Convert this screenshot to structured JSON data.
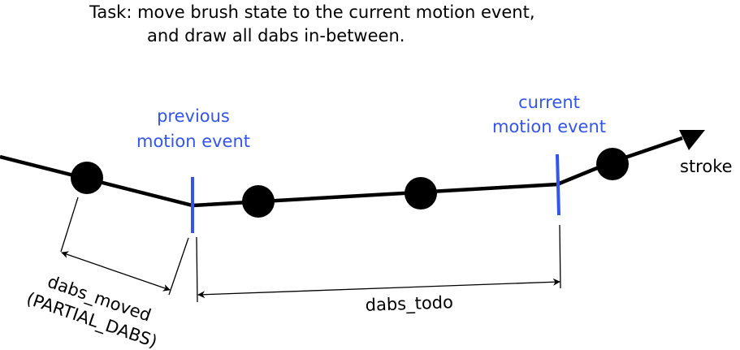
{
  "task": {
    "line1": "Task: move brush state to the current motion event,",
    "line2": "and draw all dabs in-between."
  },
  "previous_event": {
    "line1": "previous",
    "line2": "motion event"
  },
  "current_event": {
    "line1": "current",
    "line2": "motion event"
  },
  "stroke_label": "stroke",
  "dabs_moved": {
    "line1": "dabs_moved",
    "line2": "(PARTIAL_DABS)"
  },
  "dabs_todo_label": "dabs_todo",
  "colors": {
    "event_blue": "#3355ee",
    "ink": "#000000"
  }
}
